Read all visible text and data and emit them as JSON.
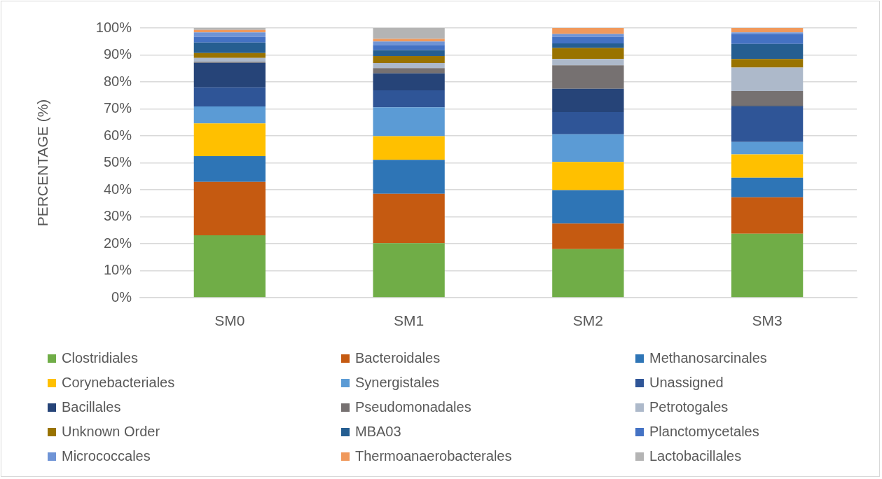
{
  "chart_data": {
    "type": "bar",
    "stacked": true,
    "ylabel": "PERCENTAGE (%)",
    "categories": [
      "SM0",
      "SM1",
      "SM2",
      "SM3"
    ],
    "ylim": [
      0,
      100
    ],
    "yticks": [
      {
        "value": 0,
        "label": "0%"
      },
      {
        "value": 10,
        "label": "10%"
      },
      {
        "value": 20,
        "label": "20%"
      },
      {
        "value": 30,
        "label": "30%"
      },
      {
        "value": 40,
        "label": "40%"
      },
      {
        "value": 50,
        "label": "50%"
      },
      {
        "value": 60,
        "label": "60%"
      },
      {
        "value": 70,
        "label": "70%"
      },
      {
        "value": 80,
        "label": "80%"
      },
      {
        "value": 90,
        "label": "90%"
      },
      {
        "value": 100,
        "label": "100%"
      }
    ],
    "grid": "y",
    "legend": "bottom",
    "series": [
      {
        "name": "Clostridiales",
        "color": "#70ad47",
        "values": [
          23.1,
          20.2,
          18.0,
          23.7
        ]
      },
      {
        "name": "Bacteroidales",
        "color": "#c55a11",
        "values": [
          19.8,
          18.3,
          9.5,
          13.5
        ]
      },
      {
        "name": "Methanosarcinales",
        "color": "#2e75b6",
        "values": [
          9.6,
          12.6,
          12.4,
          7.3
        ]
      },
      {
        "name": "Corynebacteriales",
        "color": "#ffc000",
        "values": [
          12.1,
          8.8,
          10.4,
          8.6
        ]
      },
      {
        "name": "Synergistales",
        "color": "#5b9bd5",
        "values": [
          6.3,
          10.7,
          10.3,
          4.6
        ]
      },
      {
        "name": "Unassigned",
        "color": "#2f5597",
        "values": [
          7.1,
          6.3,
          8.2,
          13.0
        ]
      },
      {
        "name": "Bacillales",
        "color": "#264478",
        "values": [
          9.1,
          6.3,
          8.7,
          0.5
        ]
      },
      {
        "name": "Pseudomonadales",
        "color": "#767171",
        "values": [
          0.4,
          1.9,
          8.7,
          5.4
        ]
      },
      {
        "name": "Petrotogales",
        "color": "#adb9ca",
        "values": [
          1.4,
          1.9,
          2.3,
          8.7
        ]
      },
      {
        "name": "Unknown Order",
        "color": "#997300",
        "values": [
          1.8,
          2.6,
          4.1,
          3.2
        ]
      },
      {
        "name": "MBA03",
        "color": "#255e91",
        "values": [
          3.9,
          2.2,
          1.7,
          5.6
        ]
      },
      {
        "name": "Planctomycetales",
        "color": "#4472c4",
        "values": [
          2.1,
          1.9,
          2.4,
          3.7
        ]
      },
      {
        "name": "Micrococcales",
        "color": "#6f94d6",
        "values": [
          1.7,
          1.3,
          1.1,
          0.6
        ]
      },
      {
        "name": "Thermoanaerobacterales",
        "color": "#f0995c",
        "values": [
          0.9,
          1.0,
          2.2,
          1.6
        ]
      },
      {
        "name": "Lactobacillales",
        "color": "#b4b4b4",
        "values": [
          0.7,
          4.0,
          0,
          0
        ]
      }
    ]
  }
}
